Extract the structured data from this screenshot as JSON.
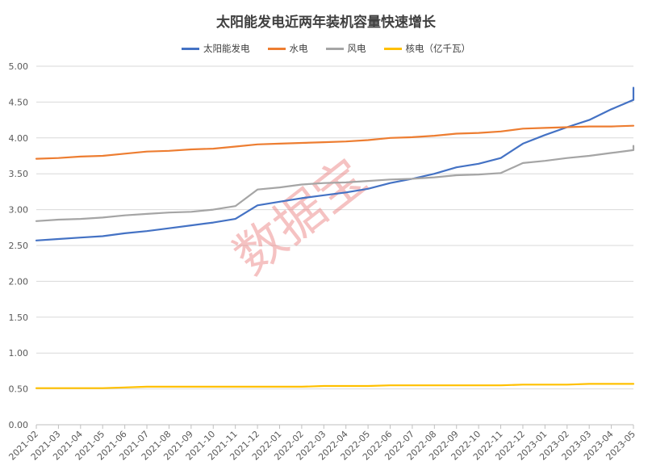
{
  "chart_data": {
    "type": "line",
    "title": "太阳能发电近两年装机容量快速增长",
    "x": [
      "2021-02",
      "2021-03",
      "2021-04",
      "2021-05",
      "2021-06",
      "2021-07",
      "2021-08",
      "2021-09",
      "2021-10",
      "2021-11",
      "2021-12",
      "2022-01",
      "2022-02",
      "2022-03",
      "2022-04",
      "2022-05",
      "2022-06",
      "2022-07",
      "2022-08",
      "2022-09",
      "2022-10",
      "2022-11",
      "2022-12",
      "2023-01",
      "2023-02",
      "2023-03",
      "2023-04",
      "2023-05"
    ],
    "ylim": [
      0,
      5
    ],
    "yticks": [
      "0.00",
      "0.50",
      "1.00",
      "1.50",
      "2.00",
      "2.50",
      "3.00",
      "3.50",
      "4.00",
      "4.50",
      "5.00"
    ],
    "grid": "horizontal",
    "legend_position": "top",
    "series": [
      {
        "name": "太阳能发电",
        "color": "#4472C4",
        "values": [
          2.57,
          2.59,
          2.61,
          2.63,
          2.67,
          2.7,
          2.74,
          2.78,
          2.82,
          2.87,
          3.06,
          3.11,
          3.16,
          3.2,
          3.24,
          3.29,
          3.37,
          3.43,
          3.5,
          3.59,
          3.64,
          3.72,
          3.92,
          4.04,
          4.15,
          4.25,
          4.4,
          4.53
        ],
        "end_spike": 4.7
      },
      {
        "name": "水电",
        "color": "#ED7D31",
        "values": [
          3.71,
          3.72,
          3.74,
          3.75,
          3.78,
          3.81,
          3.82,
          3.84,
          3.85,
          3.88,
          3.91,
          3.92,
          3.93,
          3.94,
          3.95,
          3.97,
          4.0,
          4.01,
          4.03,
          4.06,
          4.07,
          4.09,
          4.13,
          4.14,
          4.15,
          4.16,
          4.16,
          4.17
        ]
      },
      {
        "name": "风电",
        "color": "#A5A5A5",
        "values": [
          2.84,
          2.86,
          2.87,
          2.89,
          2.92,
          2.94,
          2.96,
          2.97,
          3.0,
          3.05,
          3.28,
          3.31,
          3.35,
          3.37,
          3.38,
          3.4,
          3.42,
          3.43,
          3.45,
          3.48,
          3.49,
          3.51,
          3.65,
          3.68,
          3.72,
          3.75,
          3.79,
          3.83
        ],
        "end_spike": 3.89
      },
      {
        "name": "核电（亿千瓦）",
        "color": "#FFC000",
        "values": [
          0.51,
          0.51,
          0.51,
          0.51,
          0.52,
          0.53,
          0.53,
          0.53,
          0.53,
          0.53,
          0.53,
          0.53,
          0.53,
          0.54,
          0.54,
          0.54,
          0.55,
          0.55,
          0.55,
          0.55,
          0.55,
          0.55,
          0.56,
          0.56,
          0.56,
          0.57,
          0.57,
          0.57
        ]
      }
    ]
  },
  "watermark": "数据宝"
}
